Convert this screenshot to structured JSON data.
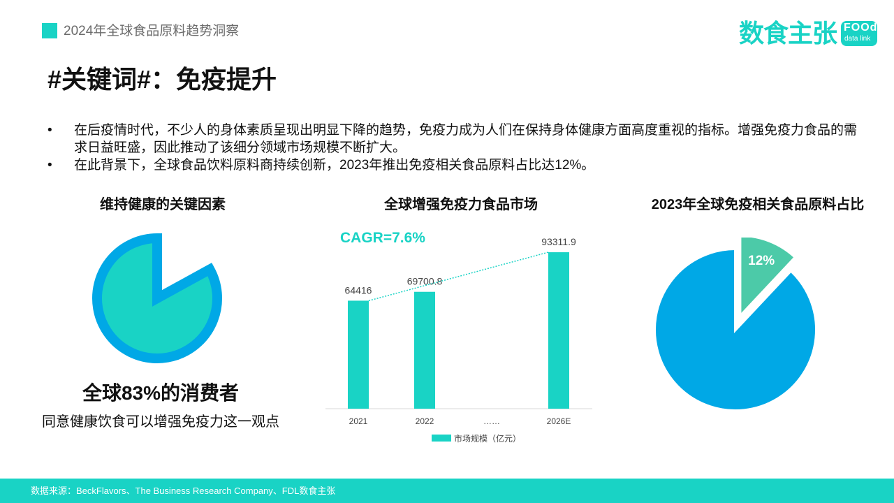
{
  "header": {
    "subtitle": "2024年全球食品原料趋势洞察"
  },
  "logo": {
    "cn": "数食主张",
    "en_top": "FOOd",
    "en_bottom": "data link"
  },
  "title": "#关键词#：免疫提升",
  "bullets": [
    {
      "dot": "•",
      "text": "在后疫情时代，不少人的身体素质呈现出明显下降的趋势，免疫力成为人们在保持身体健康方面高度重视的指标。增强免疫力食品的需求日益旺盛，因此推动了该细分领域市场规模不断扩大。"
    },
    {
      "dot": "•",
      "text": "在此背景下，全球食品饮料原料商持续创新，2023年推出免疫相关食品原料占比达12%。"
    }
  ],
  "left_panel": {
    "title": "维持健康的关键因素",
    "stat": "全球83%的消费者",
    "sub": "同意健康饮食可以增强免疫力这一观点"
  },
  "colors": {
    "accent": "#19d3c5",
    "blue": "#00a8e6",
    "pie_small": "#4ccaa8"
  },
  "chart_data": [
    {
      "type": "pie",
      "title": "",
      "values": [
        83,
        17
      ],
      "highlight_index": 1,
      "style": "donut-like exploded slice showing 83%"
    },
    {
      "type": "bar",
      "title": "全球增强免疫力食品市场",
      "categories": [
        "2021",
        "2022",
        "……",
        "2026E"
      ],
      "values": [
        64416,
        69700.8,
        null,
        93311.9
      ],
      "value_labels": [
        "64416",
        "69700.8",
        "",
        "93311.9"
      ],
      "series_name": "市场规模（亿元）",
      "annotation": "CAGR=7.6%",
      "trend_line": "dotted",
      "ylim": [
        0,
        100000
      ]
    },
    {
      "type": "pie",
      "title": "2023年全球免疫相关食品原料占比",
      "values": [
        88,
        12
      ],
      "labels": [
        "",
        "12%"
      ],
      "colors": [
        "#00a8e6",
        "#4ccaa8"
      ],
      "exploded_index": 1
    }
  ],
  "footer": {
    "source": "数据来源：BeckFlavors、The Business Research Company、FDL数食主张"
  }
}
